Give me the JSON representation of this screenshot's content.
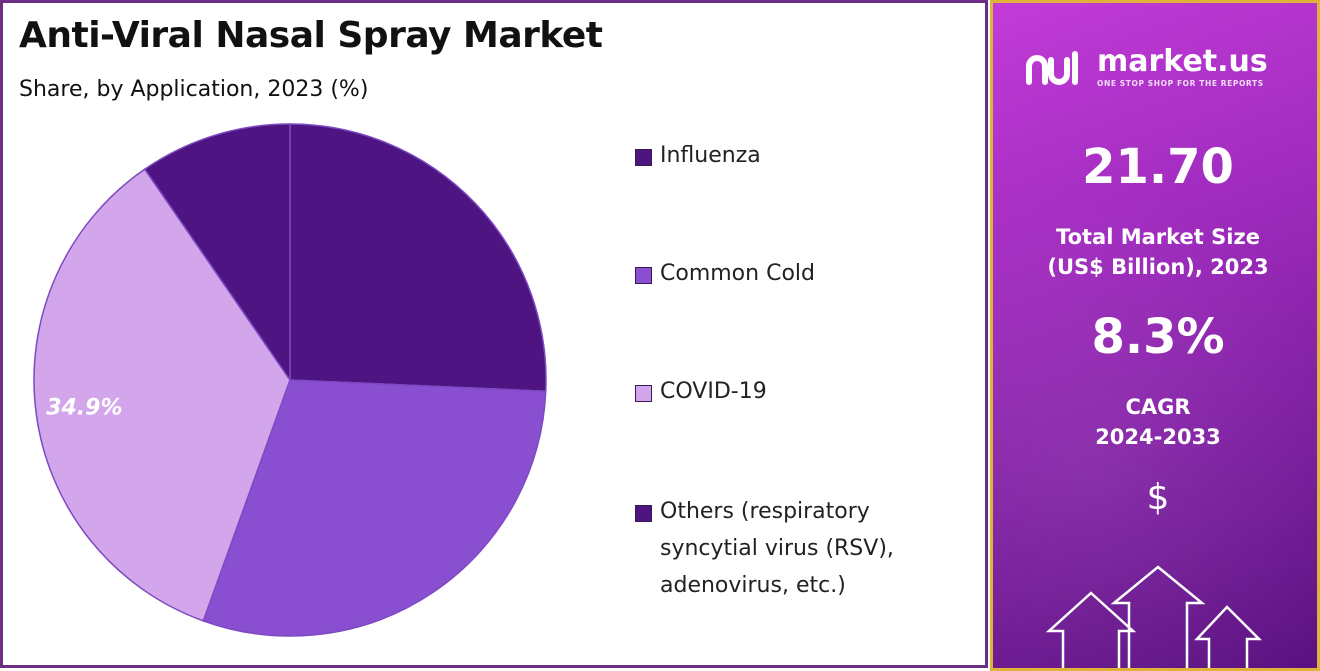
{
  "header": {
    "title": "Anti-Viral Nasal Spray Market",
    "subtitle": "Share, by Application, 2023 (%)"
  },
  "chart_data": {
    "type": "pie",
    "title": "Anti-Viral Nasal Spray Market",
    "subtitle": "Share, by Application, 2023 (%)",
    "categories": [
      "Influenza",
      "Common Cold",
      "COVID-19",
      "Others (respiratory syncytial virus (RSV), adenovirus, etc.)"
    ],
    "values": [
      25.7,
      29.8,
      34.9,
      9.6
    ],
    "data_labels": [
      "",
      "",
      "34.9%",
      ""
    ],
    "colors": [
      "#4e1582",
      "#8a4fd1",
      "#d3a6ec",
      "#4e1582"
    ],
    "legend_placement": "right"
  },
  "legend": {
    "items": [
      {
        "label": "Influenza",
        "color": "#4e1582"
      },
      {
        "label": "Common Cold",
        "color": "#8a4fd1"
      },
      {
        "label": "COVID-19",
        "color": "#d3a6ec"
      },
      {
        "label": "Others (respiratory syncytial virus (RSV), adenovirus, etc.)",
        "color": "#4e1582"
      }
    ]
  },
  "sidebar": {
    "brand_name": "market.us",
    "brand_tagline": "ONE STOP SHOP FOR THE REPORTS",
    "market_size_value": "21.70",
    "market_size_label": "Total Market Size (US$ Billion), 2023",
    "cagr_value": "8.3%",
    "cagr_label_line1": "CAGR",
    "cagr_label_line2": "2024-2033",
    "currency_symbol": "$"
  }
}
